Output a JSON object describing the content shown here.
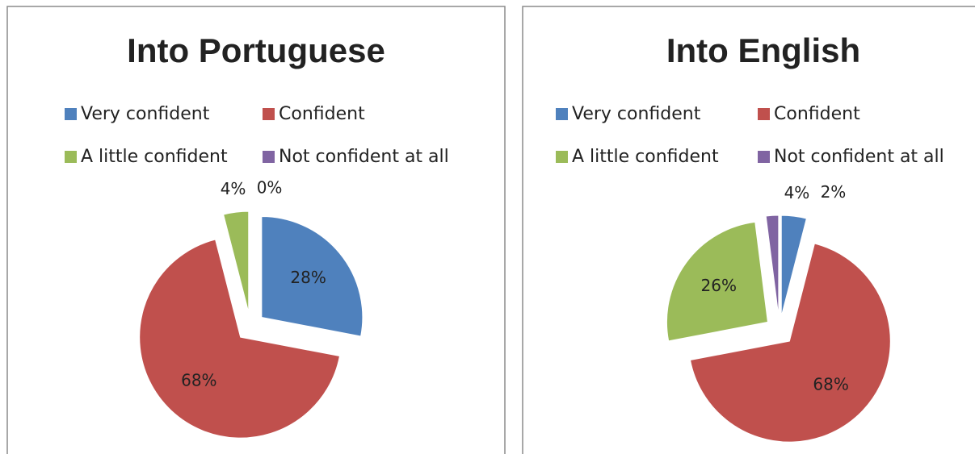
{
  "chart_data": [
    {
      "type": "pie",
      "title": "Into Portuguese",
      "categories": [
        "Very confident",
        "Confident",
        "A little confident",
        "Not confident at all"
      ],
      "values": [
        28,
        68,
        4,
        0
      ],
      "value_labels": [
        "28%",
        "68%",
        "4%",
        "0%"
      ],
      "colors": [
        "#4f81bd",
        "#c0504d",
        "#9bbb59",
        "#8064a2"
      ]
    },
    {
      "type": "pie",
      "title": "Into English",
      "categories": [
        "Very confident",
        "Confident",
        "A little confident",
        "Not confident at all"
      ],
      "values": [
        4,
        68,
        26,
        2
      ],
      "value_labels": [
        "4%",
        "68%",
        "26%",
        "2%"
      ],
      "colors": [
        "#4f81bd",
        "#c0504d",
        "#9bbb59",
        "#8064a2"
      ]
    }
  ]
}
